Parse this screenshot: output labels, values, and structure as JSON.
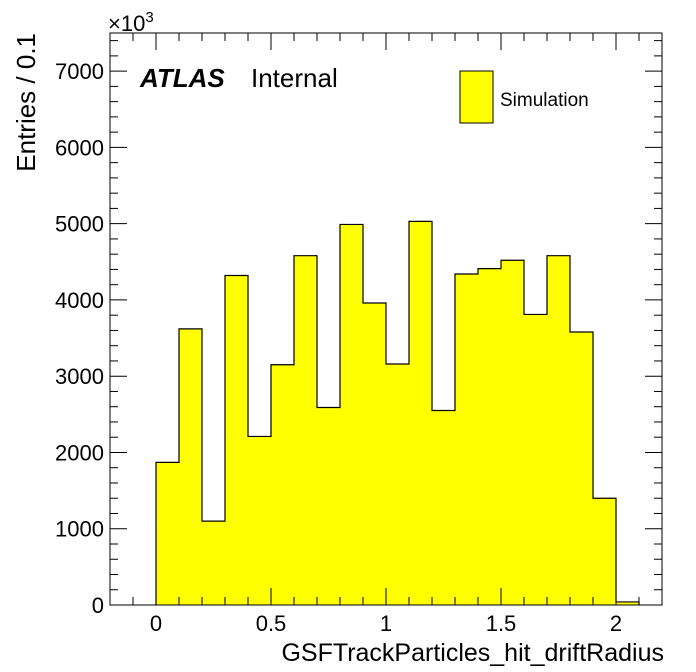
{
  "chart_data": {
    "type": "bar",
    "style": "histogram",
    "xlabel": "GSFTrackParticles_hit_driftRadius",
    "ylabel": "Entries / 0.1",
    "y_scale_label": "×10",
    "y_scale_exponent": "3",
    "xlim": [
      -0.2,
      2.2
    ],
    "ylim": [
      0,
      7500
    ],
    "x_ticks": [
      {
        "value": 0,
        "label": "0"
      },
      {
        "value": 0.5,
        "label": "0.5"
      },
      {
        "value": 1,
        "label": "1"
      },
      {
        "value": 1.5,
        "label": "1.5"
      },
      {
        "value": 2,
        "label": "2"
      }
    ],
    "y_ticks": [
      {
        "value": 0,
        "label": "0"
      },
      {
        "value": 1000,
        "label": "1000"
      },
      {
        "value": 2000,
        "label": "2000"
      },
      {
        "value": 3000,
        "label": "3000"
      },
      {
        "value": 4000,
        "label": "4000"
      },
      {
        "value": 5000,
        "label": "5000"
      },
      {
        "value": 6000,
        "label": "6000"
      },
      {
        "value": 7000,
        "label": "7000"
      }
    ],
    "bin_edges": [
      0,
      0.1,
      0.2,
      0.3,
      0.4,
      0.5,
      0.6,
      0.7,
      0.8,
      0.9,
      1.0,
      1.1,
      1.2,
      1.3,
      1.4,
      1.5,
      1.6,
      1.7,
      1.8,
      1.9,
      2.0,
      2.1
    ],
    "series": [
      {
        "name": "Simulation",
        "color": "#ffff00",
        "values": [
          1870,
          3620,
          1100,
          4320,
          2210,
          3150,
          4580,
          2590,
          4990,
          3960,
          3160,
          5030,
          2550,
          4340,
          4410,
          4520,
          3810,
          4580,
          3580,
          1400,
          40
        ]
      }
    ],
    "legend_position": "top-right",
    "grid": false
  },
  "labels": {
    "atlas": "ATLAS",
    "internal": "Internal"
  },
  "colors": {
    "fill": "#ffff00",
    "line": "#000000"
  }
}
